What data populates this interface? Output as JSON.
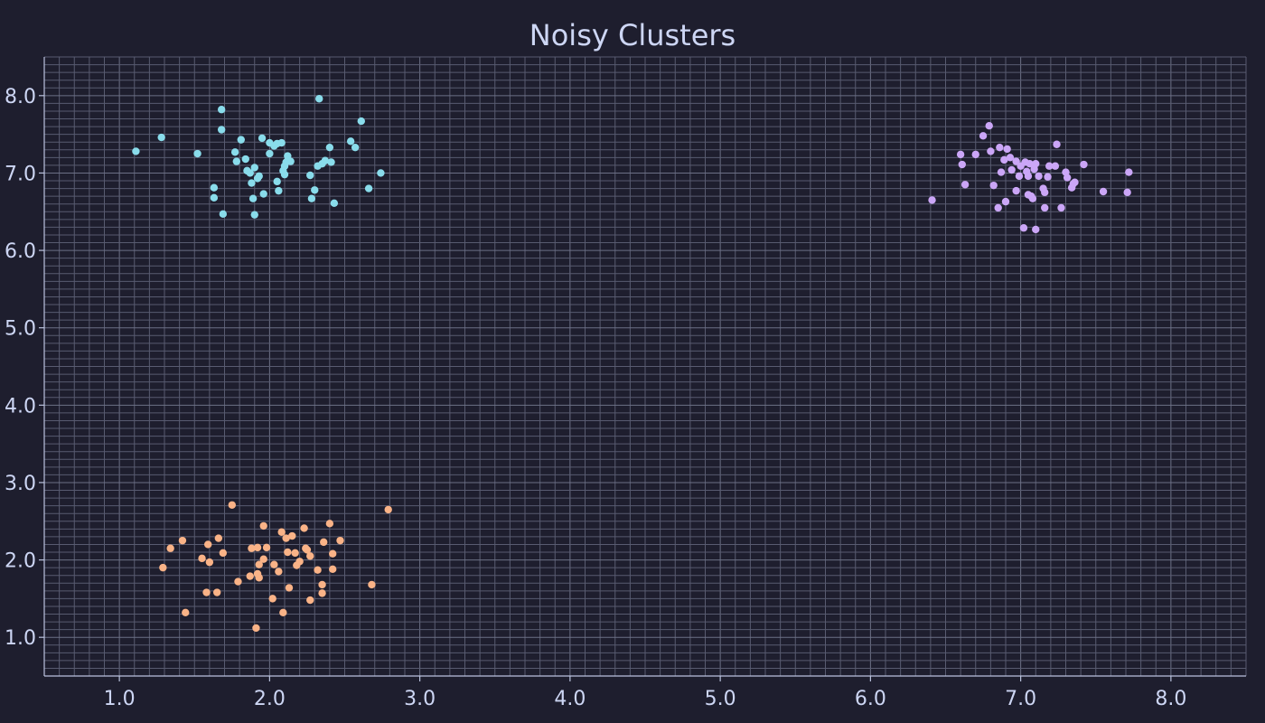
{
  "chart_data": {
    "type": "scatter",
    "title": "Noisy Clusters",
    "xlabel": "",
    "ylabel": "",
    "xlim": [
      0.5,
      8.5
    ],
    "ylim": [
      0.5,
      8.5
    ],
    "x_ticks": [
      "1.0",
      "2.0",
      "3.0",
      "4.0",
      "5.0",
      "6.0",
      "7.0",
      "8.0"
    ],
    "y_ticks": [
      "1.0",
      "2.0",
      "3.0",
      "4.0",
      "5.0",
      "6.0",
      "7.0",
      "8.0"
    ],
    "grid": true,
    "minor_grid_step": 0.1,
    "background": "#1e1e2e",
    "series": [
      {
        "color": "#89dceb",
        "points": [
          [
            1.11,
            7.28
          ],
          [
            1.28,
            7.46
          ],
          [
            1.52,
            7.25
          ],
          [
            1.63,
            6.81
          ],
          [
            1.63,
            6.68
          ],
          [
            1.68,
            7.82
          ],
          [
            1.68,
            7.56
          ],
          [
            1.69,
            6.47
          ],
          [
            1.77,
            7.27
          ],
          [
            1.78,
            7.15
          ],
          [
            1.81,
            7.43
          ],
          [
            1.84,
            7.18
          ],
          [
            1.85,
            7.03
          ],
          [
            1.87,
            7.0
          ],
          [
            1.88,
            6.87
          ],
          [
            1.89,
            6.67
          ],
          [
            1.9,
            7.07
          ],
          [
            1.9,
            6.46
          ],
          [
            1.92,
            6.93
          ],
          [
            1.93,
            6.96
          ],
          [
            1.95,
            7.45
          ],
          [
            1.96,
            6.73
          ],
          [
            2.0,
            7.25
          ],
          [
            2.0,
            7.39
          ],
          [
            2.03,
            7.35
          ],
          [
            2.05,
            7.38
          ],
          [
            2.05,
            6.89
          ],
          [
            2.06,
            6.77
          ],
          [
            2.08,
            7.39
          ],
          [
            2.09,
            7.03
          ],
          [
            2.1,
            6.98
          ],
          [
            2.1,
            7.09
          ],
          [
            2.11,
            7.14
          ],
          [
            2.12,
            7.22
          ],
          [
            2.14,
            7.15
          ],
          [
            2.27,
            6.97
          ],
          [
            2.28,
            6.67
          ],
          [
            2.3,
            6.78
          ],
          [
            2.32,
            7.09
          ],
          [
            2.33,
            7.96
          ],
          [
            2.35,
            7.12
          ],
          [
            2.37,
            7.16
          ],
          [
            2.4,
            7.33
          ],
          [
            2.41,
            7.14
          ],
          [
            2.43,
            6.61
          ],
          [
            2.54,
            7.41
          ],
          [
            2.57,
            7.33
          ],
          [
            2.61,
            7.67
          ],
          [
            2.66,
            6.8
          ],
          [
            2.74,
            7.0
          ]
        ]
      },
      {
        "color": "#cba6f7",
        "points": [
          [
            6.41,
            6.65
          ],
          [
            6.6,
            7.24
          ],
          [
            6.61,
            7.11
          ],
          [
            6.63,
            6.85
          ],
          [
            6.7,
            7.24
          ],
          [
            6.75,
            7.48
          ],
          [
            6.79,
            7.61
          ],
          [
            6.8,
            7.28
          ],
          [
            6.82,
            6.84
          ],
          [
            6.85,
            6.55
          ],
          [
            6.86,
            7.33
          ],
          [
            6.87,
            7.01
          ],
          [
            6.89,
            7.17
          ],
          [
            6.9,
            6.63
          ],
          [
            6.91,
            7.31
          ],
          [
            6.93,
            7.2
          ],
          [
            6.94,
            7.04
          ],
          [
            6.97,
            7.15
          ],
          [
            6.97,
            6.77
          ],
          [
            6.99,
            6.96
          ],
          [
            7.0,
            7.09
          ],
          [
            7.02,
            6.29
          ],
          [
            7.03,
            7.14
          ],
          [
            7.04,
            7.02
          ],
          [
            7.05,
            6.96
          ],
          [
            7.05,
            6.72
          ],
          [
            7.06,
            7.12
          ],
          [
            7.07,
            6.7
          ],
          [
            7.08,
            6.67
          ],
          [
            7.09,
            7.05
          ],
          [
            7.1,
            7.12
          ],
          [
            7.1,
            6.27
          ],
          [
            7.12,
            6.96
          ],
          [
            7.15,
            6.8
          ],
          [
            7.16,
            6.75
          ],
          [
            7.16,
            6.55
          ],
          [
            7.18,
            6.95
          ],
          [
            7.19,
            7.09
          ],
          [
            7.23,
            7.09
          ],
          [
            7.24,
            7.37
          ],
          [
            7.27,
            6.55
          ],
          [
            7.3,
            7.01
          ],
          [
            7.31,
            6.94
          ],
          [
            7.34,
            6.81
          ],
          [
            7.35,
            6.86
          ],
          [
            7.36,
            6.88
          ],
          [
            7.42,
            7.11
          ],
          [
            7.55,
            6.76
          ],
          [
            7.71,
            6.75
          ],
          [
            7.72,
            7.01
          ]
        ]
      },
      {
        "color": "#fab387",
        "points": [
          [
            1.29,
            1.9
          ],
          [
            1.34,
            2.15
          ],
          [
            1.42,
            2.25
          ],
          [
            1.44,
            1.32
          ],
          [
            1.55,
            2.02
          ],
          [
            1.58,
            1.58
          ],
          [
            1.59,
            2.2
          ],
          [
            1.6,
            1.97
          ],
          [
            1.65,
            1.58
          ],
          [
            1.66,
            2.28
          ],
          [
            1.69,
            2.09
          ],
          [
            1.75,
            2.71
          ],
          [
            1.79,
            1.72
          ],
          [
            1.87,
            1.79
          ],
          [
            1.88,
            2.15
          ],
          [
            1.91,
            1.12
          ],
          [
            1.92,
            2.16
          ],
          [
            1.92,
            1.82
          ],
          [
            1.93,
            1.94
          ],
          [
            1.93,
            1.77
          ],
          [
            1.96,
            2.44
          ],
          [
            1.96,
            2.01
          ],
          [
            1.98,
            2.16
          ],
          [
            2.02,
            1.5
          ],
          [
            2.03,
            1.94
          ],
          [
            2.06,
            1.85
          ],
          [
            2.08,
            2.36
          ],
          [
            2.09,
            1.32
          ],
          [
            2.11,
            2.28
          ],
          [
            2.12,
            2.1
          ],
          [
            2.13,
            1.64
          ],
          [
            2.15,
            2.31
          ],
          [
            2.17,
            2.09
          ],
          [
            2.18,
            1.93
          ],
          [
            2.2,
            1.98
          ],
          [
            2.23,
            2.41
          ],
          [
            2.24,
            2.15
          ],
          [
            2.25,
            2.13
          ],
          [
            2.27,
            2.05
          ],
          [
            2.27,
            1.48
          ],
          [
            2.32,
            1.87
          ],
          [
            2.35,
            1.68
          ],
          [
            2.35,
            1.57
          ],
          [
            2.36,
            2.23
          ],
          [
            2.4,
            2.47
          ],
          [
            2.42,
            2.08
          ],
          [
            2.42,
            1.88
          ],
          [
            2.47,
            2.25
          ],
          [
            2.68,
            1.68
          ],
          [
            2.79,
            2.65
          ]
        ]
      }
    ]
  }
}
